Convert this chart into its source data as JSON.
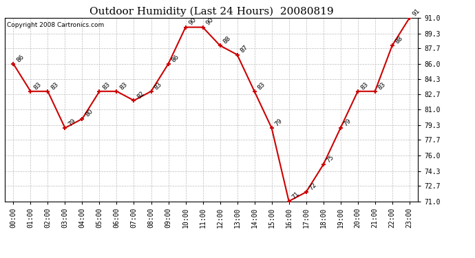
{
  "title": "Outdoor Humidity (Last 24 Hours)  20080819",
  "copyright": "Copyright 2008 Cartronics.com",
  "hours": [
    "00:00",
    "01:00",
    "02:00",
    "03:00",
    "04:00",
    "05:00",
    "06:00",
    "07:00",
    "08:00",
    "09:00",
    "10:00",
    "11:00",
    "12:00",
    "13:00",
    "14:00",
    "15:00",
    "16:00",
    "17:00",
    "18:00",
    "19:00",
    "20:00",
    "21:00",
    "22:00",
    "23:00"
  ],
  "values": [
    86,
    83,
    83,
    79,
    80,
    83,
    83,
    82,
    83,
    86,
    90,
    90,
    88,
    87,
    83,
    79,
    71,
    72,
    75,
    79,
    83,
    83,
    88,
    91
  ],
  "ylim": [
    71.0,
    91.0
  ],
  "yticks": [
    71.0,
    72.7,
    74.3,
    76.0,
    77.7,
    79.3,
    81.0,
    82.7,
    84.3,
    86.0,
    87.7,
    89.3,
    91.0
  ],
  "line_color": "#cc0000",
  "marker_color": "#cc0000",
  "bg_color": "#ffffff",
  "plot_bg_color": "#ffffff",
  "grid_color": "#bbbbbb",
  "title_color": "#000000",
  "label_color": "#000000",
  "copyright_color": "#000000",
  "title_fontsize": 11,
  "label_fontsize": 7,
  "copyright_fontsize": 6.5,
  "annotation_fontsize": 6.5
}
